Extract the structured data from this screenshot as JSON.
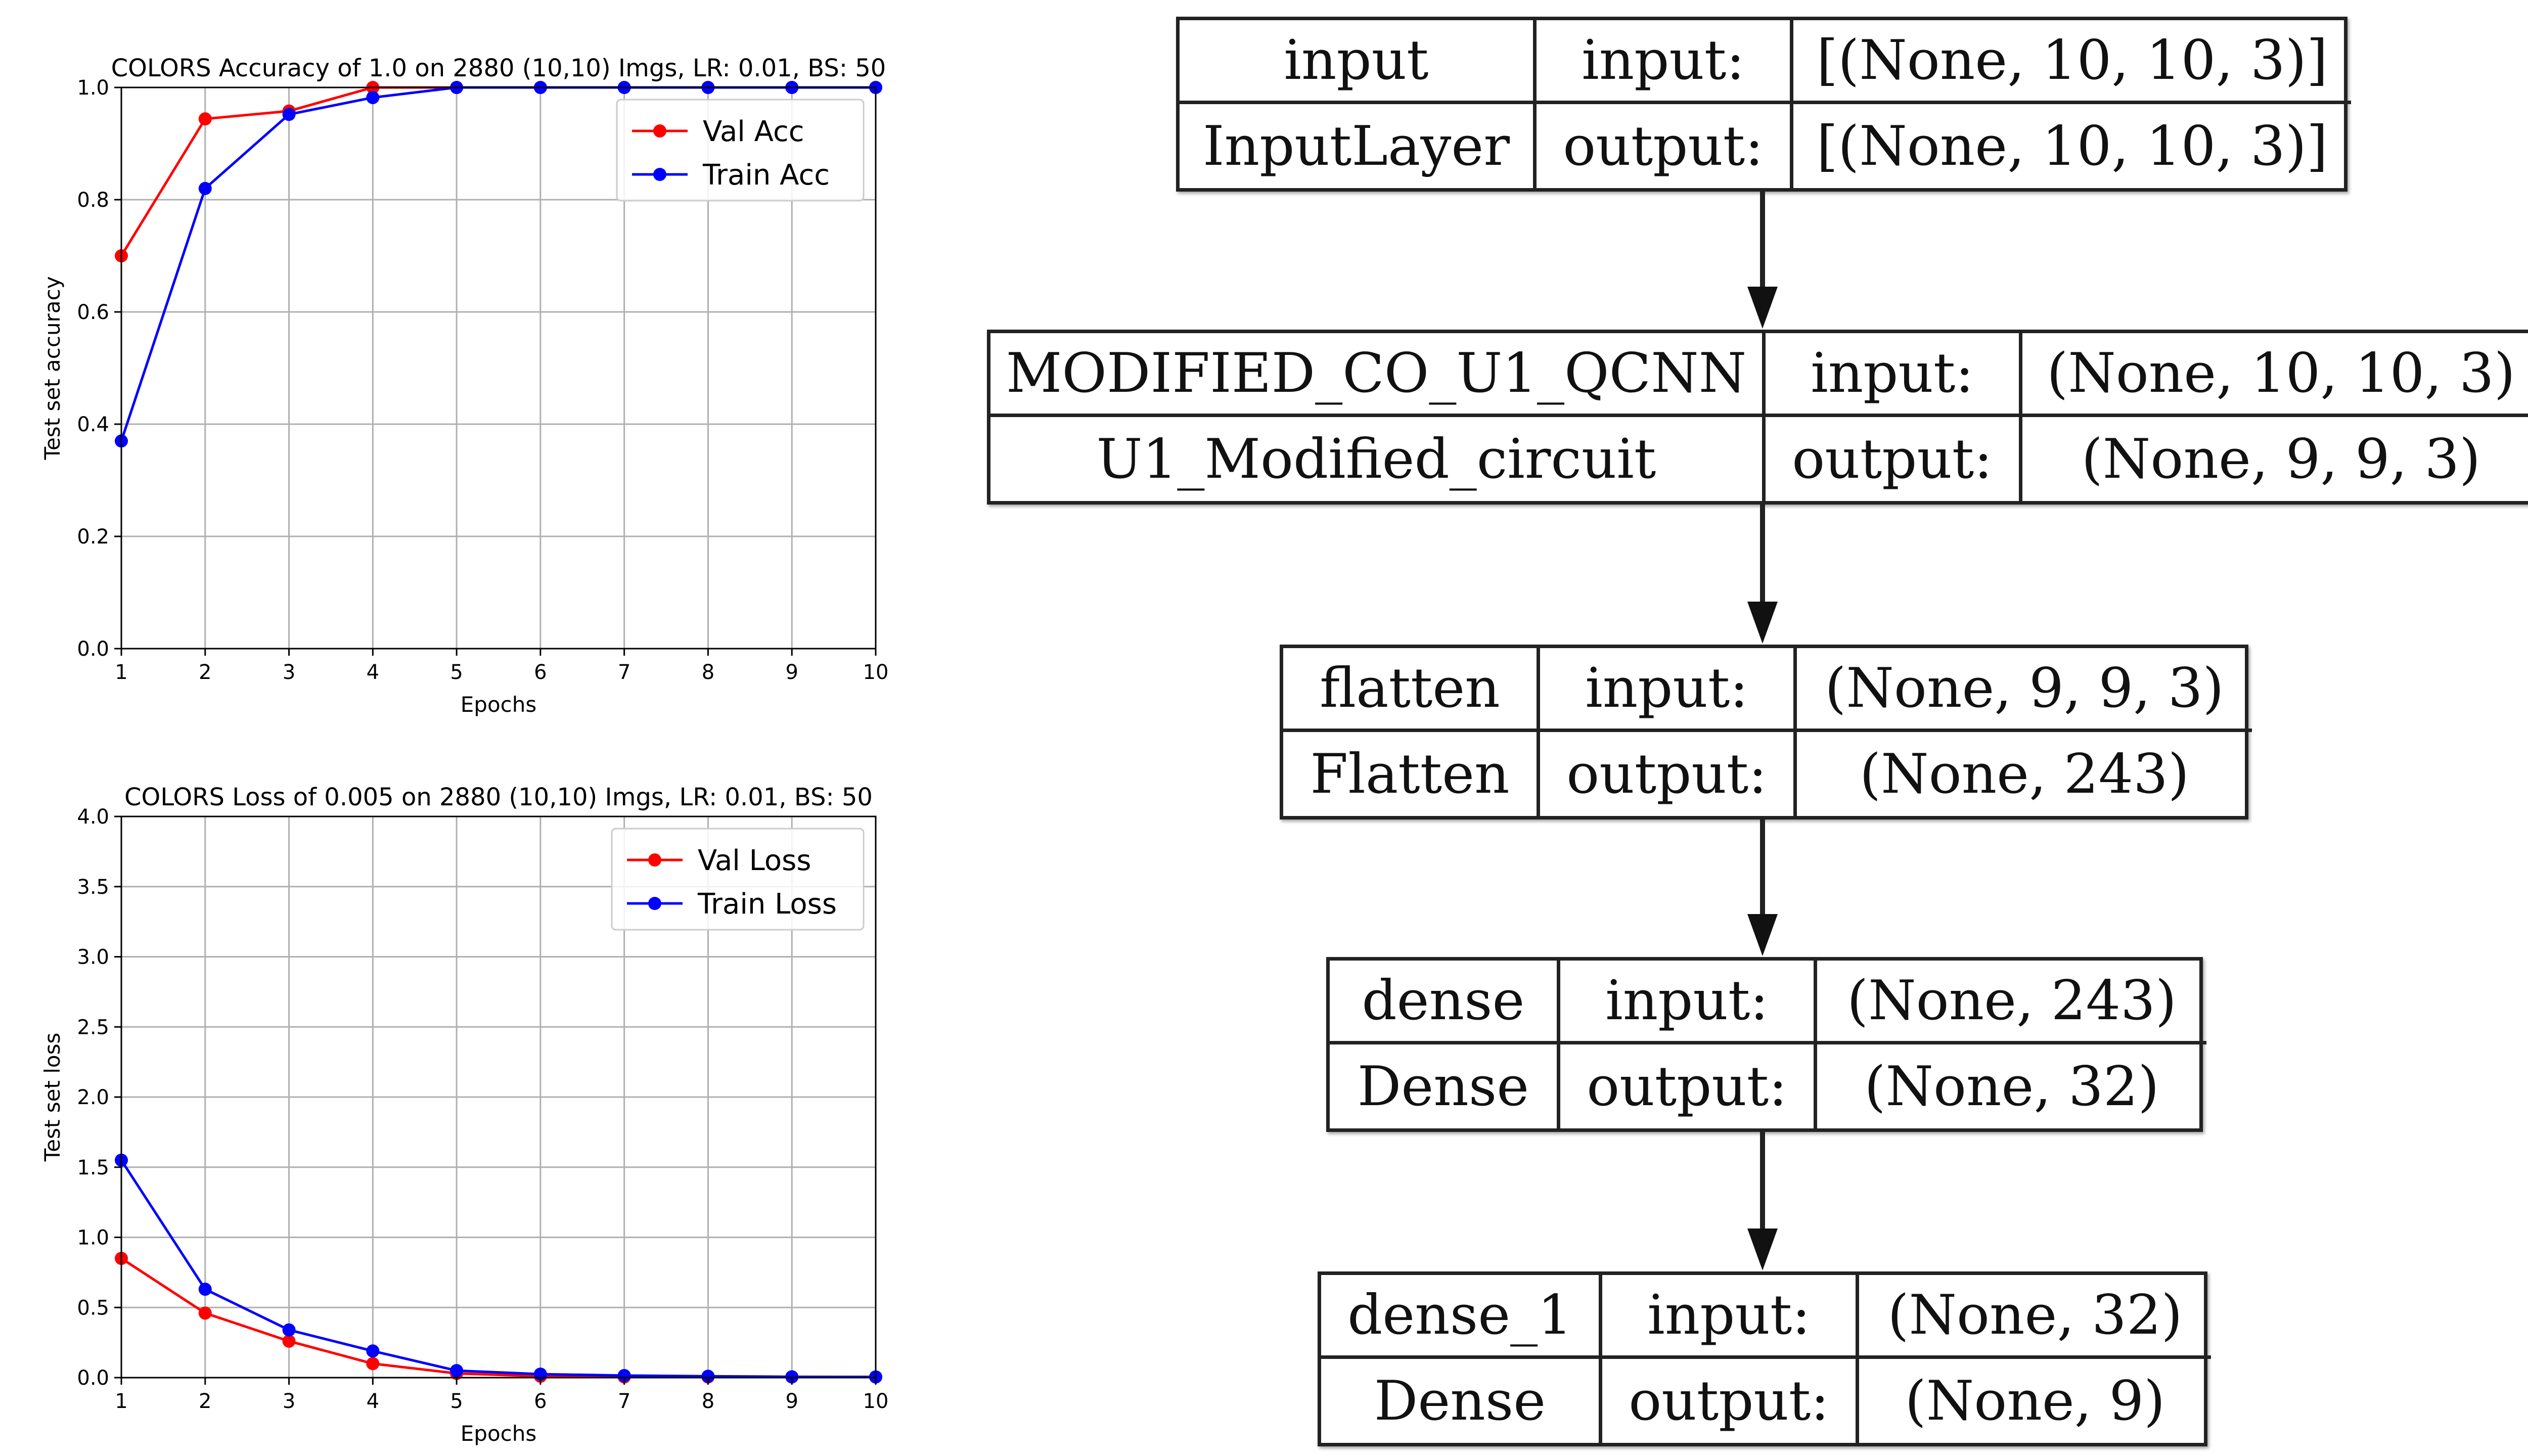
{
  "chart_data": [
    {
      "type": "line",
      "title": "COLORS Accuracy of 1.0 on 2880 (10,10) Imgs, LR: 0.01, BS: 50",
      "xlabel": "Epochs",
      "ylabel": "Test set accuracy",
      "x": [
        1,
        2,
        3,
        4,
        5,
        6,
        7,
        8,
        9,
        10
      ],
      "xlim": [
        1,
        10
      ],
      "ylim": [
        0.0,
        1.0
      ],
      "xticks": [
        "1",
        "2",
        "3",
        "4",
        "5",
        "6",
        "7",
        "8",
        "9",
        "10"
      ],
      "yticks": [
        "0.0",
        "0.2",
        "0.4",
        "0.6",
        "0.8",
        "1.0"
      ],
      "ytick_values": [
        0.0,
        0.2,
        0.4,
        0.6,
        0.8,
        1.0
      ],
      "grid": true,
      "legend": "top-right",
      "series": [
        {
          "name": "Val Acc",
          "color": "#ff0000",
          "values": [
            0.7,
            0.944,
            0.958,
            1.0,
            1.0,
            1.0,
            1.0,
            1.0,
            1.0,
            1.0
          ]
        },
        {
          "name": "Train Acc",
          "color": "#0000ff",
          "values": [
            0.37,
            0.82,
            0.952,
            0.982,
            1.0,
            1.0,
            1.0,
            1.0,
            1.0,
            1.0
          ]
        }
      ]
    },
    {
      "type": "line",
      "title": "COLORS Loss of 0.005 on 2880 (10,10) Imgs, LR: 0.01, BS: 50",
      "xlabel": "Epochs",
      "ylabel": "Test set loss",
      "x": [
        1,
        2,
        3,
        4,
        5,
        6,
        7,
        8,
        9,
        10
      ],
      "xlim": [
        1,
        10
      ],
      "ylim": [
        0.0,
        4.0
      ],
      "xticks": [
        "1",
        "2",
        "3",
        "4",
        "5",
        "6",
        "7",
        "8",
        "9",
        "10"
      ],
      "yticks": [
        "0.0",
        "0.5",
        "1.0",
        "1.5",
        "2.0",
        "2.5",
        "3.0",
        "3.5",
        "4.0"
      ],
      "ytick_values": [
        0.0,
        0.5,
        1.0,
        1.5,
        2.0,
        2.5,
        3.0,
        3.5,
        4.0
      ],
      "grid": true,
      "legend": "top-right",
      "series": [
        {
          "name": "Val Loss",
          "color": "#ff0000",
          "values": [
            0.85,
            0.46,
            0.26,
            0.1,
            0.03,
            0.01,
            0.005,
            0.005,
            0.005,
            0.005
          ]
        },
        {
          "name": "Train Loss",
          "color": "#0000ff",
          "values": [
            1.55,
            0.63,
            0.34,
            0.19,
            0.05,
            0.025,
            0.015,
            0.01,
            0.006,
            0.005
          ]
        }
      ]
    }
  ],
  "model_diagram": {
    "layers": [
      {
        "name": "input",
        "type": "InputLayer",
        "input_label": "input:",
        "output_label": "output:",
        "input_shape": "[(None, 10, 10, 3)]",
        "output_shape": "[(None, 10, 10, 3)]"
      },
      {
        "name": "MODIFIED_CO_U1_QCNN",
        "type": "U1_Modified_circuit",
        "input_label": "input:",
        "output_label": "output:",
        "input_shape": "(None, 10, 10, 3)",
        "output_shape": "(None, 9, 9, 3)"
      },
      {
        "name": "flatten",
        "type": "Flatten",
        "input_label": "input:",
        "output_label": "output:",
        "input_shape": "(None, 9, 9, 3)",
        "output_shape": "(None, 243)"
      },
      {
        "name": "dense",
        "type": "Dense",
        "input_label": "input:",
        "output_label": "output:",
        "input_shape": "(None, 243)",
        "output_shape": "(None, 32)"
      },
      {
        "name": "dense_1",
        "type": "Dense",
        "input_label": "input:",
        "output_label": "output:",
        "input_shape": "(None, 32)",
        "output_shape": "(None, 9)"
      }
    ]
  }
}
